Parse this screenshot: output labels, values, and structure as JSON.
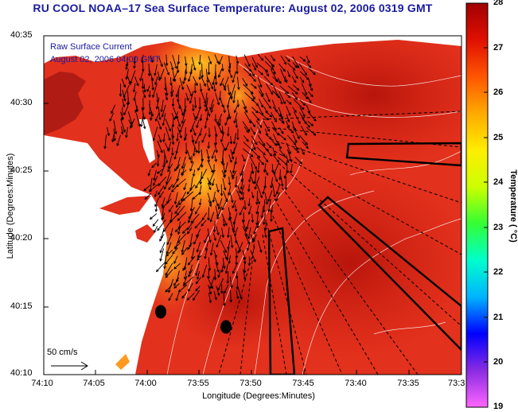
{
  "title": "RU COOL  NOAA–17  Sea Surface Temperature:  August 02, 2006 0319 GMT",
  "overlay": {
    "line1": "Raw Surface Current",
    "line2": "August 02, 2006 04:00 GMT"
  },
  "scale_arrow_label": "50 cm/s",
  "axes": {
    "xlabel": "Longitude (Degrees:Minutes)",
    "ylabel": "Latitude (Degrees:Minutes)",
    "xticks": [
      "74:10",
      "74:05",
      "74:00",
      "73:55",
      "73:50",
      "73:45",
      "73:40",
      "73:35",
      "73:3"
    ],
    "yticks": [
      "40:35",
      "40:30",
      "40:25",
      "40:20",
      "40:15",
      "40:10"
    ]
  },
  "colorbar": {
    "label": "Temperature ( °C)",
    "ticks": [
      "28",
      "27",
      "26",
      "25",
      "24",
      "23",
      "22",
      "21",
      "20",
      "19"
    ],
    "range": [
      19,
      28
    ],
    "colors": [
      "#ff66ff",
      "#8a2be2",
      "#0000ff",
      "#00b4ff",
      "#00ffcc",
      "#33ff33",
      "#ccff00",
      "#ffee00",
      "#ffaa00",
      "#ff5500",
      "#e01000",
      "#a00000"
    ]
  },
  "colors": {
    "title": "#1a1aa0",
    "land": "#ffffff",
    "sst_base": "#e2311c",
    "sst_warm": "#c81a10",
    "sst_cool": "#ff9a20",
    "buoy": "#000000"
  }
}
